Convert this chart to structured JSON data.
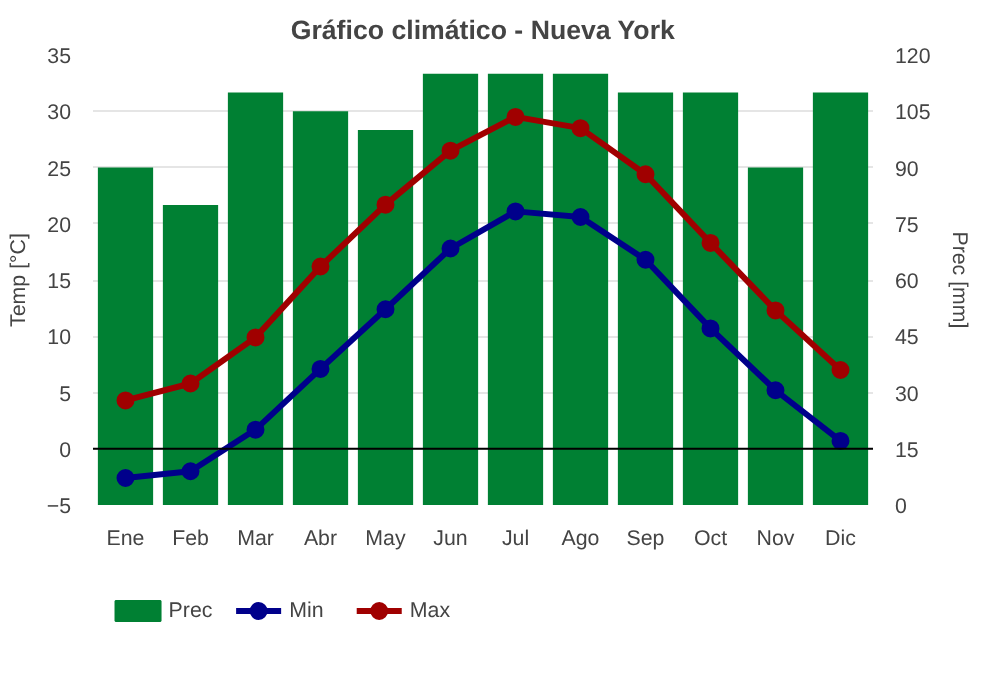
{
  "chart_data": {
    "type": "bar",
    "title": "Gráfico climático - Nueva York",
    "ylabel": "Temp [°C]",
    "y2label": "Prec [mm]",
    "categories": [
      "Ene",
      "Feb",
      "Mar",
      "Abr",
      "May",
      "Jun",
      "Jul",
      "Ago",
      "Sep",
      "Oct",
      "Nov",
      "Dic"
    ],
    "series": [
      {
        "name": "Prec",
        "axis": "y2",
        "color": "#008033",
        "values": [
          90,
          80,
          110,
          105,
          100,
          115,
          115,
          115,
          110,
          110,
          90,
          110
        ]
      },
      {
        "name": "Min",
        "type": "line",
        "color": "#00008b",
        "values": [
          -2.6,
          -2.0,
          1.7,
          7.1,
          12.4,
          17.8,
          21.1,
          20.6,
          16.8,
          10.7,
          5.2,
          0.7
        ]
      },
      {
        "name": "Max",
        "type": "line",
        "color": "#a00000",
        "values": [
          4.3,
          5.8,
          9.9,
          16.2,
          21.7,
          26.5,
          29.5,
          28.5,
          24.4,
          18.3,
          12.3,
          7.0
        ]
      }
    ],
    "ylim": [
      -5,
      35
    ],
    "yticks": [
      -5,
      0,
      5,
      10,
      15,
      20,
      25,
      30,
      35
    ],
    "y2lim": [
      0,
      120
    ],
    "y2ticks": [
      0,
      15,
      30,
      45,
      60,
      75,
      90,
      105,
      120
    ],
    "ref_lines": [
      {
        "axis": "y",
        "value": 0,
        "color": "#000000"
      }
    ],
    "grid": "y",
    "legend": "bottom",
    "marker": "circle",
    "line_style": "solid"
  }
}
